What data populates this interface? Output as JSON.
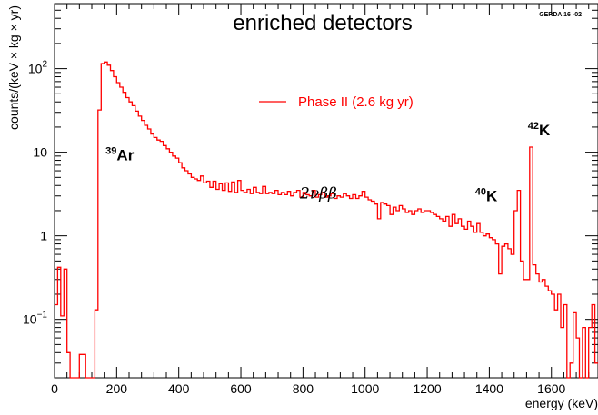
{
  "chart_data": {
    "type": "line",
    "title": "enriched detectors",
    "tag": "GERDA 16 -02",
    "xlabel": "energy (keV)",
    "ylabel": "counts/(keV × kg × yr)",
    "xlim": [
      0,
      1750
    ],
    "ylim": [
      0.02,
      600
    ],
    "yscale": "log",
    "x_ticks": [
      "0",
      "200",
      "400",
      "600",
      "800",
      "1000",
      "1200",
      "1400",
      "1600"
    ],
    "y_ticks": [
      {
        "value": 0.1,
        "base": "10",
        "exp": "−1"
      },
      {
        "value": 1,
        "base": "1",
        "exp": ""
      },
      {
        "value": 10,
        "base": "10",
        "exp": ""
      },
      {
        "value": 100,
        "base": "10",
        "exp": "2"
      }
    ],
    "legend": {
      "placement": "top-center",
      "color": "#ff0000"
    },
    "series": [
      {
        "name": "Phase II (2.6 kg yr)",
        "color": "#ff0000",
        "x": [
          0,
          10,
          20,
          30,
          40,
          50,
          60,
          70,
          80,
          90,
          100,
          110,
          120,
          130,
          140,
          150,
          160,
          170,
          180,
          190,
          200,
          210,
          220,
          230,
          240,
          250,
          260,
          270,
          280,
          290,
          300,
          310,
          320,
          330,
          340,
          350,
          360,
          370,
          380,
          390,
          400,
          410,
          420,
          430,
          440,
          450,
          460,
          470,
          480,
          490,
          500,
          510,
          520,
          530,
          540,
          550,
          560,
          570,
          580,
          590,
          600,
          610,
          620,
          630,
          640,
          650,
          660,
          670,
          680,
          690,
          700,
          710,
          720,
          730,
          740,
          750,
          760,
          770,
          780,
          790,
          800,
          810,
          820,
          830,
          840,
          850,
          860,
          870,
          880,
          890,
          900,
          910,
          920,
          930,
          940,
          950,
          960,
          970,
          980,
          990,
          1000,
          1010,
          1020,
          1030,
          1040,
          1050,
          1060,
          1070,
          1080,
          1090,
          1100,
          1110,
          1120,
          1130,
          1140,
          1150,
          1160,
          1170,
          1180,
          1190,
          1200,
          1210,
          1220,
          1230,
          1240,
          1250,
          1260,
          1270,
          1280,
          1290,
          1300,
          1310,
          1320,
          1330,
          1340,
          1350,
          1360,
          1370,
          1380,
          1390,
          1400,
          1410,
          1420,
          1430,
          1440,
          1450,
          1460,
          1470,
          1480,
          1490,
          1500,
          1510,
          1520,
          1530,
          1540,
          1550,
          1560,
          1570,
          1580,
          1590,
          1600,
          1610,
          1620,
          1630,
          1640,
          1650,
          1660,
          1670,
          1680,
          1690,
          1700,
          1710,
          1720,
          1730,
          1740
        ],
        "y": [
          0.15,
          0.42,
          0.11,
          0.4,
          0.04,
          0.02,
          0.02,
          0.02,
          0.038,
          0.038,
          0.02,
          0.02,
          0.02,
          0.13,
          32,
          115,
          120,
          110,
          95,
          80,
          68,
          60,
          52,
          45,
          40,
          36,
          31,
          27,
          24,
          21,
          19,
          16.5,
          15,
          14,
          13.5,
          12,
          11,
          10,
          9,
          8.5,
          7.5,
          6.5,
          6,
          5.5,
          5,
          4.8,
          4.6,
          5.2,
          4.3,
          4.5,
          3.8,
          4.5,
          3.6,
          4.2,
          3.5,
          4.3,
          3.4,
          4.4,
          3.3,
          4.6,
          3.5,
          3.3,
          3.6,
          3.2,
          3.8,
          3.3,
          3.2,
          3.9,
          3.2,
          3.3,
          3.2,
          3.5,
          3.1,
          3.3,
          3.1,
          3.4,
          3.0,
          3.3,
          3.5,
          2.9,
          3.3,
          3.1,
          3.0,
          3.5,
          2.9,
          3.1,
          3.3,
          2.9,
          3.0,
          3.2,
          2.8,
          3.0,
          2.9,
          3.2,
          3.0,
          2.8,
          3.1,
          2.8,
          3.0,
          3.4,
          2.9,
          2.7,
          2.6,
          2.4,
          1.6,
          2.5,
          2.4,
          2.3,
          1.8,
          2.2,
          2.0,
          2.3,
          2.1,
          1.9,
          2.0,
          1.8,
          2.0,
          2.1,
          1.9,
          2.0,
          2.0,
          1.9,
          1.8,
          1.7,
          1.6,
          1.5,
          1.7,
          1.3,
          1.8,
          1.4,
          1.6,
          1.3,
          1.2,
          1.5,
          1.3,
          1.1,
          1.4,
          1.1,
          1.0,
          1.05,
          0.95,
          0.9,
          0.8,
          0.35,
          0.75,
          0.8,
          0.7,
          0.6,
          2.0,
          3.5,
          0.5,
          0.3,
          0.3,
          11.5,
          0.45,
          0.35,
          0.28,
          0.3,
          0.25,
          0.22,
          0.2,
          0.13,
          0.2,
          0.08,
          0.15,
          0.02,
          0.03,
          0.12,
          0.06,
          0.02,
          0.08,
          0.02,
          0.08,
          0.15,
          0.03
        ]
      }
    ],
    "annotations": [
      {
        "sup": "39",
        "label": "Ar",
        "x": 210,
        "y": 8
      },
      {
        "sup": "40",
        "label": "K",
        "x": 1390,
        "y": 2.6
      },
      {
        "sup": "42",
        "label": "K",
        "x": 1560,
        "y": 16
      },
      {
        "sup": "",
        "label": "2νββ",
        "x": 850,
        "y": 2.8
      }
    ]
  }
}
